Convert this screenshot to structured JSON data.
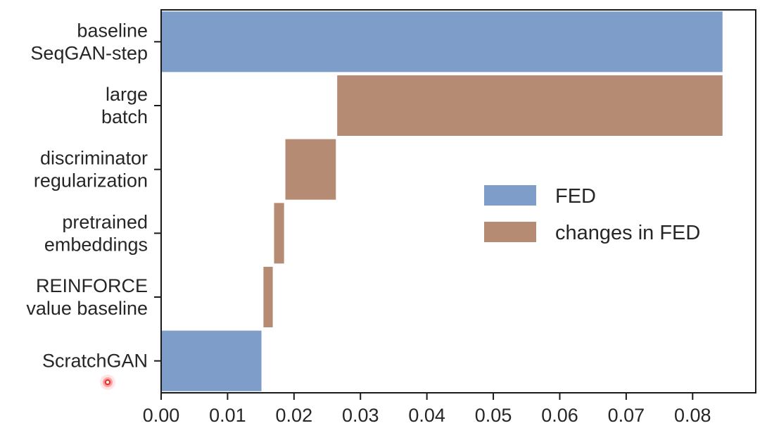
{
  "chart_data": {
    "type": "bar",
    "orientation": "horizontal-waterfall",
    "categories": [
      [
        "baseline",
        "SeqGAN-step"
      ],
      [
        "large",
        "batch"
      ],
      [
        "discriminator",
        "regularization"
      ],
      [
        "pretrained",
        "embeddings"
      ],
      [
        "REINFORCE",
        "value baseline"
      ],
      [
        "ScratchGAN"
      ]
    ],
    "bars": [
      {
        "start": 0.0,
        "end": 0.0845,
        "series": "FED"
      },
      {
        "start": 0.0265,
        "end": 0.0845,
        "series": "changes in FED"
      },
      {
        "start": 0.0187,
        "end": 0.0263,
        "series": "changes in FED"
      },
      {
        "start": 0.017,
        "end": 0.0185,
        "series": "changes in FED"
      },
      {
        "start": 0.0154,
        "end": 0.0168,
        "series": "changes in FED"
      },
      {
        "start": 0.0,
        "end": 0.0151,
        "series": "FED"
      }
    ],
    "xlim": [
      0.0,
      0.0895
    ],
    "xticks": [
      "0.00",
      "0.01",
      "0.02",
      "0.03",
      "0.04",
      "0.05",
      "0.06",
      "0.07",
      "0.08"
    ],
    "legend": {
      "placement": "center-right",
      "entries": [
        {
          "name": "FED",
          "color": "#7e9dc9"
        },
        {
          "name": "changes in FED",
          "color": "#b68b74"
        }
      ]
    },
    "grid": false
  }
}
